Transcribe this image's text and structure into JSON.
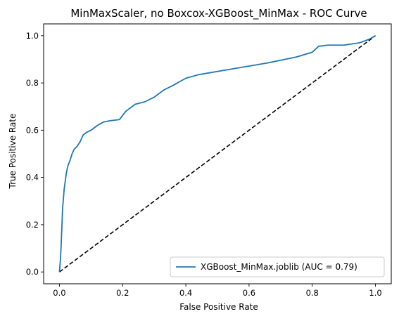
{
  "chart_data": {
    "type": "line",
    "title": "MinMaxScaler, no Boxcox-XGBoost_MinMax - ROC Curve",
    "xlabel": "False Positive Rate",
    "ylabel": "True Positive Rate",
    "xlim": [
      -0.05,
      1.05
    ],
    "ylim": [
      -0.05,
      1.05
    ],
    "xticks": [
      "0.0",
      "0.2",
      "0.4",
      "0.6",
      "0.8",
      "1.0"
    ],
    "yticks": [
      "0.0",
      "0.2",
      "0.4",
      "0.6",
      "0.8",
      "1.0"
    ],
    "grid": false,
    "legend_position": "lower-right",
    "series": [
      {
        "name": "XGBoost_MinMax.joblib (AUC = 0.79)",
        "color": "#1f77b4",
        "style": "solid",
        "x": [
          0.0,
          0.003,
          0.005,
          0.008,
          0.01,
          0.012,
          0.015,
          0.018,
          0.022,
          0.027,
          0.033,
          0.04,
          0.047,
          0.055,
          0.065,
          0.075,
          0.085,
          0.1,
          0.12,
          0.14,
          0.16,
          0.19,
          0.21,
          0.24,
          0.27,
          0.3,
          0.33,
          0.36,
          0.4,
          0.44,
          0.55,
          0.66,
          0.75,
          0.8,
          0.82,
          0.85,
          0.9,
          0.95,
          0.98,
          1.0
        ],
        "y": [
          0.0,
          0.05,
          0.1,
          0.2,
          0.27,
          0.3,
          0.35,
          0.38,
          0.42,
          0.45,
          0.47,
          0.5,
          0.52,
          0.53,
          0.55,
          0.58,
          0.59,
          0.6,
          0.62,
          0.635,
          0.64,
          0.645,
          0.68,
          0.71,
          0.72,
          0.74,
          0.77,
          0.79,
          0.82,
          0.835,
          0.86,
          0.885,
          0.91,
          0.93,
          0.955,
          0.96,
          0.96,
          0.97,
          0.985,
          1.0
        ]
      },
      {
        "name": "",
        "color": "#000000",
        "style": "dashed",
        "x": [
          0.0,
          1.0
        ],
        "y": [
          0.0,
          1.0
        ]
      }
    ]
  }
}
